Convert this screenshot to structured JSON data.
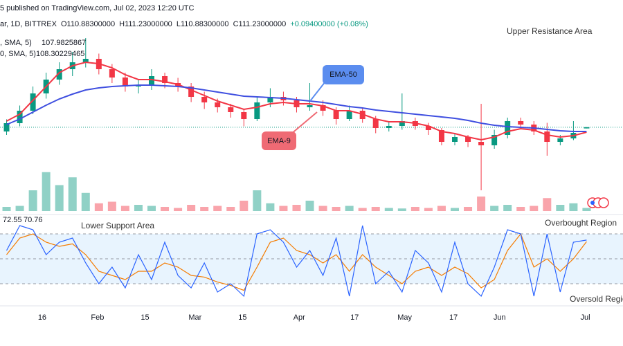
{
  "chart_data": {
    "type": "candlestick",
    "header": "5 published on TradingView.com, Jul 02, 2023 12:20 UTC",
    "legend_line": {
      "symbol": "ar, 1D, BITTREX",
      "open": "O110.88300000",
      "high": "H111.23000000",
      "low": "L110.88300000",
      "close": "C111.23000000",
      "change": "+0.09400000 (+0.08%)"
    },
    "xlim": [
      0,
      46
    ],
    "xticks": [
      {
        "value": 3.2,
        "label": "16"
      },
      {
        "value": 7.4,
        "label": "Feb"
      },
      {
        "value": 11.0,
        "label": "15"
      },
      {
        "value": 14.8,
        "label": "Mar"
      },
      {
        "value": 18.4,
        "label": "15"
      },
      {
        "value": 22.7,
        "label": "Apr"
      },
      {
        "value": 26.9,
        "label": "17"
      },
      {
        "value": 30.7,
        "label": "May"
      },
      {
        "value": 34.4,
        "label": "17"
      },
      {
        "value": 37.9,
        "label": "Jun"
      },
      {
        "value": 44.4,
        "label": "Jul"
      }
    ],
    "ylim": [
      87,
      148
    ],
    "up_color": "#089981",
    "down_color": "#f23645",
    "open": [
      110,
      112.4,
      116,
      121,
      125,
      128,
      130,
      131,
      128,
      125.6,
      123,
      123.2,
      126,
      124,
      123,
      120,
      118.4,
      117,
      115.6,
      113.6,
      118.4,
      120,
      119,
      117,
      117.6,
      116,
      113.6,
      116,
      113.6,
      111,
      111.6,
      113,
      111.6,
      110.4,
      107,
      108.4,
      107,
      106,
      109,
      113,
      112,
      110,
      107,
      108,
      110.883
    ],
    "high": [
      113.5,
      117.5,
      123,
      127,
      130,
      133,
      137,
      132.5,
      129.5,
      127,
      125,
      128,
      127,
      125.5,
      124,
      121.5,
      119.5,
      118,
      116.5,
      120,
      122.5,
      121.5,
      120,
      124,
      119,
      117,
      117.5,
      117,
      114.5,
      113,
      121,
      114,
      112.5,
      111,
      109.5,
      109,
      118,
      110.5,
      114,
      114,
      113,
      112.5,
      109,
      113,
      111.23
    ],
    "low": [
      109,
      111.5,
      115,
      119.5,
      123.5,
      126,
      128.5,
      126.5,
      124,
      121.5,
      121,
      122,
      122.5,
      121.5,
      118.5,
      116.5,
      115.5,
      114,
      111.5,
      113,
      117,
      117.5,
      115.5,
      116,
      114.5,
      112,
      113,
      112.5,
      109.5,
      110,
      110.5,
      110.5,
      109,
      106,
      106,
      105.5,
      93,
      105,
      108,
      111,
      109,
      103,
      106,
      107.5,
      110.883
    ],
    "close": [
      112.4,
      116,
      121,
      125,
      128,
      130,
      131,
      128,
      125.6,
      123,
      123.2,
      126,
      124,
      123,
      120,
      118.4,
      117,
      115.6,
      113.6,
      118.4,
      120,
      119,
      117,
      117.6,
      116,
      113.6,
      116,
      113.6,
      111,
      111.6,
      113,
      111.6,
      110.4,
      107,
      108.4,
      107,
      106,
      109,
      113,
      112,
      110,
      107,
      108,
      109.6,
      111.23
    ],
    "series": [
      {
        "name": "EMA-9",
        "color": "#f23645",
        "legend_text": ", SMA, 5)",
        "legend_value": 107.9825867,
        "values": [
          113,
          115,
          119,
          123,
          127,
          129,
          130,
          129.6,
          128.4,
          126.4,
          125,
          125,
          124.4,
          123.6,
          122,
          120.4,
          118.8,
          117.6,
          116.4,
          117,
          118,
          118.4,
          118,
          118,
          117.4,
          116,
          116,
          115,
          113.6,
          112.8,
          112.8,
          112.4,
          111.6,
          110,
          109.4,
          108.4,
          107.6,
          108.4,
          110,
          110.8,
          110.4,
          109,
          108.4,
          108.8,
          109.8
        ]
      },
      {
        "name": "EMA-50",
        "color": "#3f4fe0",
        "legend_text": "0, SMA, 5)",
        "legend_value": 108.30229465,
        "values": [
          112,
          113.6,
          115.6,
          117.6,
          119.4,
          120.8,
          122,
          122.6,
          123,
          123.2,
          123.4,
          123.4,
          123.2,
          123,
          122.6,
          122,
          121.4,
          120.8,
          120.2,
          120,
          119.8,
          119.6,
          119.2,
          118.8,
          118.4,
          117.8,
          117.2,
          116.8,
          116.2,
          115.8,
          115.4,
          115,
          114.6,
          114.2,
          113.8,
          113.2,
          112.4,
          111.8,
          111.4,
          111.2,
          111,
          110.6,
          110.2,
          110,
          110
        ]
      }
    ],
    "volume": {
      "ylim": [
        0,
        100
      ],
      "values": [
        8,
        10,
        40,
        75,
        50,
        65,
        35,
        15,
        18,
        10,
        12,
        10,
        8,
        6,
        12,
        8,
        10,
        8,
        20,
        40,
        15,
        10,
        12,
        20,
        10,
        8,
        10,
        6,
        8,
        6,
        5,
        8,
        6,
        10,
        6,
        8,
        28,
        10,
        12,
        8,
        10,
        25,
        12,
        15,
        6
      ]
    },
    "stochastic": {
      "ylim": [
        0,
        100
      ],
      "levels": [
        80,
        50,
        20
      ],
      "k": {
        "color": "#2962ff",
        "values": [
          60,
          90,
          85,
          55,
          70,
          75,
          45,
          20,
          40,
          15,
          55,
          25,
          70,
          30,
          15,
          45,
          10,
          20,
          5,
          80,
          85,
          70,
          40,
          60,
          30,
          75,
          5,
          90,
          20,
          35,
          10,
          60,
          45,
          10,
          70,
          20,
          5,
          40,
          85,
          80,
          5,
          80,
          10,
          70,
          72.55
        ]
      },
      "d": {
        "color": "#f57c00",
        "values": [
          55,
          75,
          80,
          70,
          65,
          68,
          55,
          35,
          30,
          25,
          35,
          35,
          45,
          40,
          30,
          28,
          22,
          18,
          12,
          40,
          70,
          75,
          60,
          55,
          45,
          55,
          35,
          55,
          40,
          30,
          20,
          35,
          40,
          30,
          40,
          32,
          15,
          25,
          60,
          80,
          40,
          50,
          35,
          50,
          70.76
        ]
      }
    },
    "annotations": {
      "upper": "Upper Resistance Area",
      "lower": "Lower Support Area",
      "overbought": "Overbought Region",
      "oversold": "Oversold Regio"
    }
  }
}
